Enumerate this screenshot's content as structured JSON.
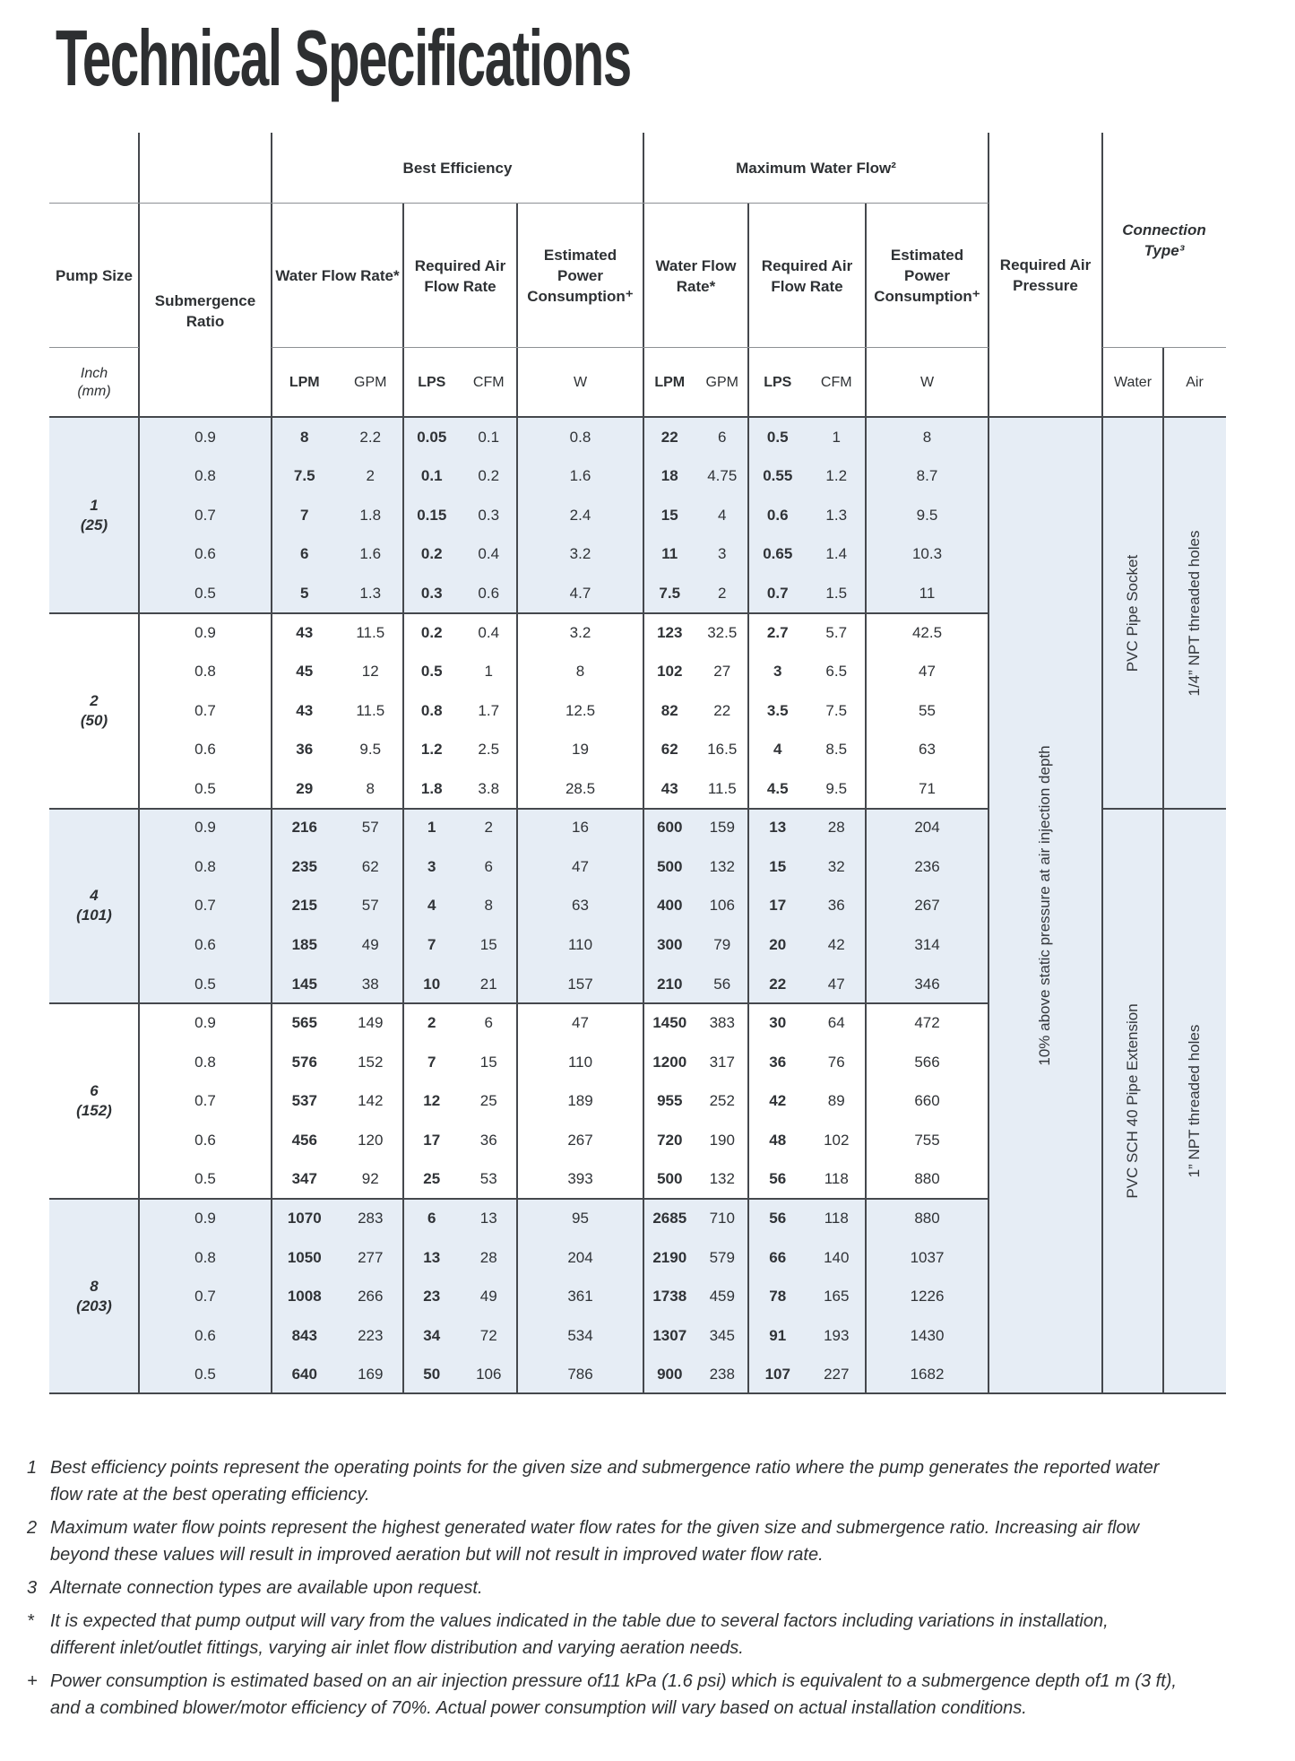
{
  "title": "Technical Specifications",
  "table": {
    "group_headers": {
      "best_efficiency": "Best Efficiency",
      "max_water_flow": "Maximum Water Flow²"
    },
    "col_headers": {
      "pump_size": "Pump Size",
      "submergence": "Submergence Ratio",
      "water_flow": "Water Flow Rate*",
      "air_flow": "Required Air Flow Rate",
      "power": "Estimated Power Consumption⁺",
      "air_pressure": "Required Air Pressure",
      "connection": "Connection Type³"
    },
    "units": {
      "size": "Inch\n(mm)",
      "lpm": "LPM",
      "gpm": "GPM",
      "lps": "LPS",
      "cfm": "CFM",
      "w": "W",
      "water": "Water",
      "air": "Air"
    },
    "air_pressure_note": "10% above static pressure at air injection depth",
    "connection_specs": [
      {
        "water": "PVC Pipe Socket",
        "air": "1/4”  NPT threaded holes"
      },
      {
        "water": "PVC SCH 40 Pipe Extension",
        "air": "1”  NPT threaded holes"
      }
    ],
    "colors": {
      "shaded_row_bg": "#e6edf5",
      "grid_dark": "#45484d",
      "grid_light": "#8d9094"
    },
    "blocks": [
      {
        "size": "1",
        "size_mm": "(25)",
        "shaded": true,
        "rows": [
          {
            "ratio": "0.9",
            "values": [
              "8",
              "2.2",
              "0.05",
              "0.1",
              "0.8",
              "22",
              "6",
              "0.5",
              "1",
              "8"
            ]
          },
          {
            "ratio": "0.8",
            "values": [
              "7.5",
              "2",
              "0.1",
              "0.2",
              "1.6",
              "18",
              "4.75",
              "0.55",
              "1.2",
              "8.7"
            ]
          },
          {
            "ratio": "0.7",
            "values": [
              "7",
              "1.8",
              "0.15",
              "0.3",
              "2.4",
              "15",
              "4",
              "0.6",
              "1.3",
              "9.5"
            ]
          },
          {
            "ratio": "0.6",
            "values": [
              "6",
              "1.6",
              "0.2",
              "0.4",
              "3.2",
              "11",
              "3",
              "0.65",
              "1.4",
              "10.3"
            ]
          },
          {
            "ratio": "0.5",
            "values": [
              "5",
              "1.3",
              "0.3",
              "0.6",
              "4.7",
              "7.5",
              "2",
              "0.7",
              "1.5",
              "11"
            ]
          }
        ]
      },
      {
        "size": "2",
        "size_mm": "(50)",
        "shaded": false,
        "rows": [
          {
            "ratio": "0.9",
            "values": [
              "43",
              "11.5",
              "0.2",
              "0.4",
              "3.2",
              "123",
              "32.5",
              "2.7",
              "5.7",
              "42.5"
            ]
          },
          {
            "ratio": "0.8",
            "values": [
              "45",
              "12",
              "0.5",
              "1",
              "8",
              "102",
              "27",
              "3",
              "6.5",
              "47"
            ]
          },
          {
            "ratio": "0.7",
            "values": [
              "43",
              "11.5",
              "0.8",
              "1.7",
              "12.5",
              "82",
              "22",
              "3.5",
              "7.5",
              "55"
            ]
          },
          {
            "ratio": "0.6",
            "values": [
              "36",
              "9.5",
              "1.2",
              "2.5",
              "19",
              "62",
              "16.5",
              "4",
              "8.5",
              "63"
            ]
          },
          {
            "ratio": "0.5",
            "values": [
              "29",
              "8",
              "1.8",
              "3.8",
              "28.5",
              "43",
              "11.5",
              "4.5",
              "9.5",
              "71"
            ]
          }
        ]
      },
      {
        "size": "4",
        "size_mm": "(101)",
        "shaded": true,
        "rows": [
          {
            "ratio": "0.9",
            "values": [
              "216",
              "57",
              "1",
              "2",
              "16",
              "600",
              "159",
              "13",
              "28",
              "204"
            ]
          },
          {
            "ratio": "0.8",
            "values": [
              "235",
              "62",
              "3",
              "6",
              "47",
              "500",
              "132",
              "15",
              "32",
              "236"
            ]
          },
          {
            "ratio": "0.7",
            "values": [
              "215",
              "57",
              "4",
              "8",
              "63",
              "400",
              "106",
              "17",
              "36",
              "267"
            ]
          },
          {
            "ratio": "0.6",
            "values": [
              "185",
              "49",
              "7",
              "15",
              "110",
              "300",
              "79",
              "20",
              "42",
              "314"
            ]
          },
          {
            "ratio": "0.5",
            "values": [
              "145",
              "38",
              "10",
              "21",
              "157",
              "210",
              "56",
              "22",
              "47",
              "346"
            ]
          }
        ]
      },
      {
        "size": "6",
        "size_mm": "(152)",
        "shaded": false,
        "rows": [
          {
            "ratio": "0.9",
            "values": [
              "565",
              "149",
              "2",
              "6",
              "47",
              "1450",
              "383",
              "30",
              "64",
              "472"
            ]
          },
          {
            "ratio": "0.8",
            "values": [
              "576",
              "152",
              "7",
              "15",
              "110",
              "1200",
              "317",
              "36",
              "76",
              "566"
            ]
          },
          {
            "ratio": "0.7",
            "values": [
              "537",
              "142",
              "12",
              "25",
              "189",
              "955",
              "252",
              "42",
              "89",
              "660"
            ]
          },
          {
            "ratio": "0.6",
            "values": [
              "456",
              "120",
              "17",
              "36",
              "267",
              "720",
              "190",
              "48",
              "102",
              "755"
            ]
          },
          {
            "ratio": "0.5",
            "values": [
              "347",
              "92",
              "25",
              "53",
              "393",
              "500",
              "132",
              "56",
              "118",
              "880"
            ]
          }
        ]
      },
      {
        "size": "8",
        "size_mm": "(203)",
        "shaded": true,
        "rows": [
          {
            "ratio": "0.9",
            "values": [
              "1070",
              "283",
              "6",
              "13",
              "95",
              "2685",
              "710",
              "56",
              "118",
              "880"
            ]
          },
          {
            "ratio": "0.8",
            "values": [
              "1050",
              "277",
              "13",
              "28",
              "204",
              "2190",
              "579",
              "66",
              "140",
              "1037"
            ]
          },
          {
            "ratio": "0.7",
            "values": [
              "1008",
              "266",
              "23",
              "49",
              "361",
              "1738",
              "459",
              "78",
              "165",
              "1226"
            ]
          },
          {
            "ratio": "0.6",
            "values": [
              "843",
              "223",
              "34",
              "72",
              "534",
              "1307",
              "345",
              "91",
              "193",
              "1430"
            ]
          },
          {
            "ratio": "0.5",
            "values": [
              "640",
              "169",
              "50",
              "106",
              "786",
              "900",
              "238",
              "107",
              "227",
              "1682"
            ]
          }
        ]
      }
    ]
  },
  "footnotes": [
    {
      "marker": "1",
      "text": "Best efficiency points represent the operating points for the given size and submergence ratio where the pump generates the reported water\nflow rate at the best operating efficiency."
    },
    {
      "marker": "2",
      "text": "Maximum water flow points represent the highest generated water flow rates for the given size and submergence ratio. Increasing air flow\nbeyond these values will result in improved aeration but will not result in improved water flow rate."
    },
    {
      "marker": "3",
      "text": "Alternate connection types are available upon request."
    },
    {
      "marker": "*",
      "text": "It is expected that pump output will vary from the values indicated in the table due to several factors including variations in installation,\ndifferent inlet/outlet fittings, varying air inlet flow distribution and varying aeration needs."
    },
    {
      "marker": "+",
      "text": "Power consumption is estimated based on an air injection pressure of11 kPa (1.6 psi) which is equivalent to a submergence depth of1 m (3 ft),\nand a combined blower/motor efficiency of 70%. Actual power consumption will vary based on actual installation conditions."
    }
  ]
}
